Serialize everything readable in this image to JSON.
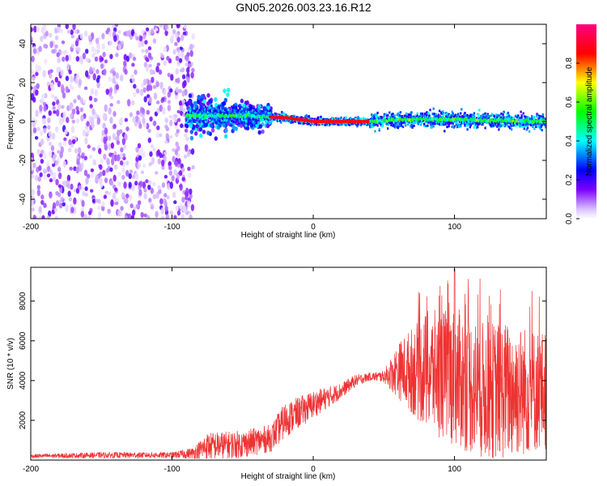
{
  "title": "GN05.2026.003.23.16.R12",
  "chart_data": [
    {
      "type": "heatmap",
      "name": "spectrogram",
      "xlabel": "Height of straight line (km)",
      "ylabel": "Frequency (Hz)",
      "xlim": [
        -200,
        165
      ],
      "ylim": [
        -50,
        50
      ],
      "xticks": [
        -200,
        -100,
        0,
        100
      ],
      "yticks": [
        -40,
        -20,
        0,
        20,
        40
      ],
      "colorbar": {
        "label": "Normalized spectral amplitude",
        "range": [
          0,
          1
        ],
        "ticks": [
          0.0,
          0.2,
          0.4,
          0.6,
          0.8
        ],
        "tick_labels": [
          "0.0",
          "0.2",
          "0.4",
          "0.6",
          "0.8"
        ],
        "colormap": [
          "#ffffff",
          "#7b00ff",
          "#0000ff",
          "#00ffff",
          "#00ff00",
          "#ffff00",
          "#ff0000",
          "#ff0080"
        ]
      },
      "ridge": {
        "description_values": [
          [
            -80,
            3
          ],
          [
            -50,
            3
          ],
          [
            -20,
            2
          ],
          [
            0,
            0
          ],
          [
            40,
            0
          ],
          [
            60,
            1
          ],
          [
            100,
            1
          ],
          [
            160,
            0
          ]
        ],
        "peak_region_x": [
          -30,
          40
        ],
        "peak_amplitude": 0.9
      },
      "noise_region_x": [
        -200,
        -85
      ]
    },
    {
      "type": "line",
      "name": "snr",
      "xlabel": "Height of straight line (km)",
      "ylabel": "SNR (10 * v/v)",
      "xlim": [
        -200,
        165
      ],
      "ylim": [
        0,
        9700
      ],
      "xticks": [
        -200,
        -100,
        0,
        100
      ],
      "yticks": [
        2000,
        4000,
        6000,
        8000
      ],
      "color": "#ee3333",
      "envelope": {
        "x": [
          -200,
          -150,
          -100,
          -85,
          -75,
          -50,
          -30,
          -20,
          0,
          20,
          30,
          40,
          50,
          60,
          80,
          100,
          120,
          140,
          165
        ],
        "base": [
          200,
          250,
          250,
          350,
          700,
          800,
          1100,
          2000,
          2800,
          3500,
          4000,
          4200,
          4200,
          4500,
          4500,
          4200,
          3500,
          3500,
          3500
        ],
        "spread": [
          100,
          150,
          150,
          300,
          700,
          700,
          700,
          900,
          700,
          400,
          300,
          200,
          300,
          1400,
          3000,
          3500,
          3500,
          3500,
          3000
        ]
      },
      "max_value": 9600
    }
  ]
}
